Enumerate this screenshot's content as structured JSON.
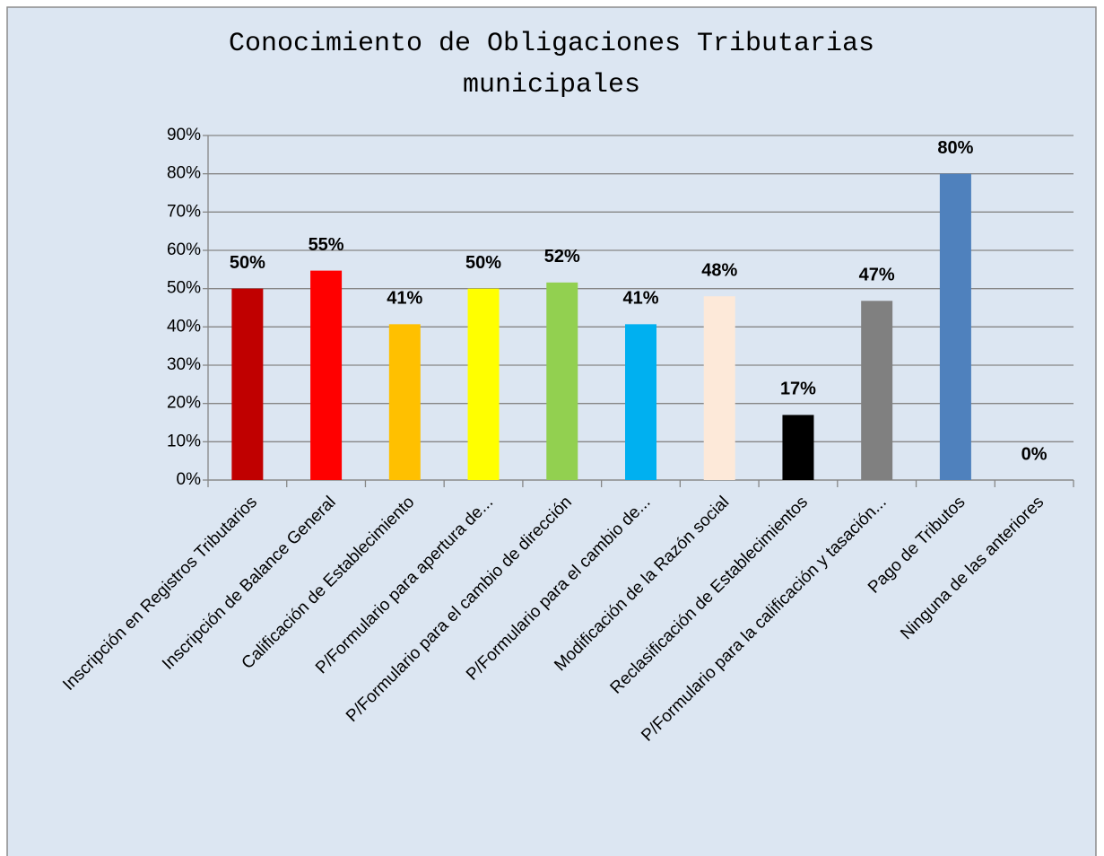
{
  "chart_data": {
    "type": "bar",
    "title": [
      "Conocimiento de Obligaciones Tributarias",
      "municipales"
    ],
    "categories": [
      "Inscripción en Registros Tributarios",
      "Inscripción de Balance General",
      "Calificación de Establecimiento",
      "P/Formulario para apertura de...",
      "P/Formulario para el cambio de dirección",
      "P/Formulario para el cambio de...",
      "Modificación de la Razón social",
      "Reclasificación de Establecimientos",
      "P/Formulario para la calificación y tasación...",
      "Pago de Tributos",
      "Ninguna de las anteriores"
    ],
    "values": [
      50,
      54.7,
      40.7,
      50,
      51.6,
      40.7,
      48,
      17,
      46.8,
      80,
      0
    ],
    "value_labels": [
      "50%",
      "55%",
      "41%",
      "50%",
      "52%",
      "41%",
      "48%",
      "17%",
      "47%",
      "80%",
      "0%"
    ],
    "colors": [
      "#c00000",
      "#ff0000",
      "#ffc000",
      "#ffff00",
      "#92d050",
      "#00b0f0",
      "#fde9d9",
      "#000000",
      "#808080",
      "#4f81bd",
      "#8064a2"
    ],
    "ylim": [
      0,
      90
    ],
    "yticks": [
      {
        "value": 0,
        "label": "0%"
      },
      {
        "value": 10,
        "label": "10%"
      },
      {
        "value": 20,
        "label": "20%"
      },
      {
        "value": 30,
        "label": "30%"
      },
      {
        "value": 40,
        "label": "40%"
      },
      {
        "value": 50,
        "label": "50%"
      },
      {
        "value": 60,
        "label": "60%"
      },
      {
        "value": 70,
        "label": "70%"
      },
      {
        "value": 80,
        "label": "80%"
      },
      {
        "value": 90,
        "label": "90%"
      }
    ],
    "grid": true
  }
}
